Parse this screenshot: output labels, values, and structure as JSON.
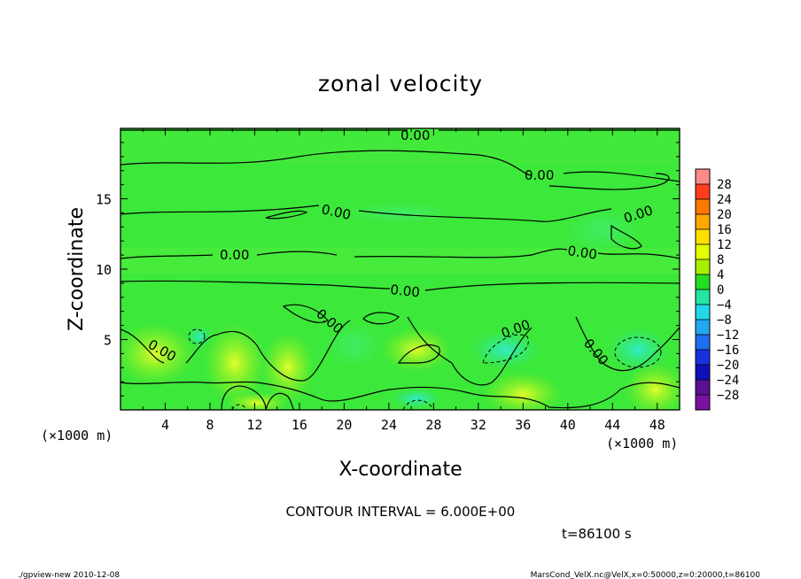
{
  "chart_data": {
    "type": "heatmap",
    "title": "zonal velocity",
    "xlabel": "X-coordinate",
    "ylabel": "Z-coordinate",
    "x_unit": "(×1000 m)",
    "xlim": [
      0,
      50
    ],
    "ylim": [
      0,
      20
    ],
    "x_ticks": [
      4,
      8,
      12,
      16,
      20,
      24,
      28,
      32,
      36,
      40,
      44,
      48
    ],
    "y_ticks": [
      5,
      10,
      15
    ],
    "contour_interval_text": "CONTOUR INTERVAL = 6.000E+00",
    "contour_labels": [
      "0.00",
      "0.00",
      "0.00",
      "0.00",
      "0.00",
      "0.00",
      "0.00",
      "0.00",
      "0.00",
      "0.00",
      "0.00"
    ],
    "colorbar": {
      "levels": [
        28,
        24,
        20,
        16,
        12,
        8,
        4,
        0,
        -4,
        -8,
        -12,
        -16,
        -20,
        -24,
        -28
      ],
      "colors": [
        "#ff8a8a",
        "#ff3c1e",
        "#ff7800",
        "#ffa800",
        "#ffe000",
        "#e4ff00",
        "#a8f000",
        "#22dd22",
        "#22e6a0",
        "#22d8e8",
        "#22a8f0",
        "#1e6ef0",
        "#1830e0",
        "#1010b8",
        "#5a1090",
        "#7a10a0"
      ]
    },
    "grid": false,
    "legend": "right colorbar"
  },
  "annotations": {
    "time": "t=86100 s",
    "footer_left": "./gpview-new  2010-12-08",
    "footer_right": "MarsCond_VelX.nc@VelX,x=0:50000,z=0:20000,t=86100"
  }
}
